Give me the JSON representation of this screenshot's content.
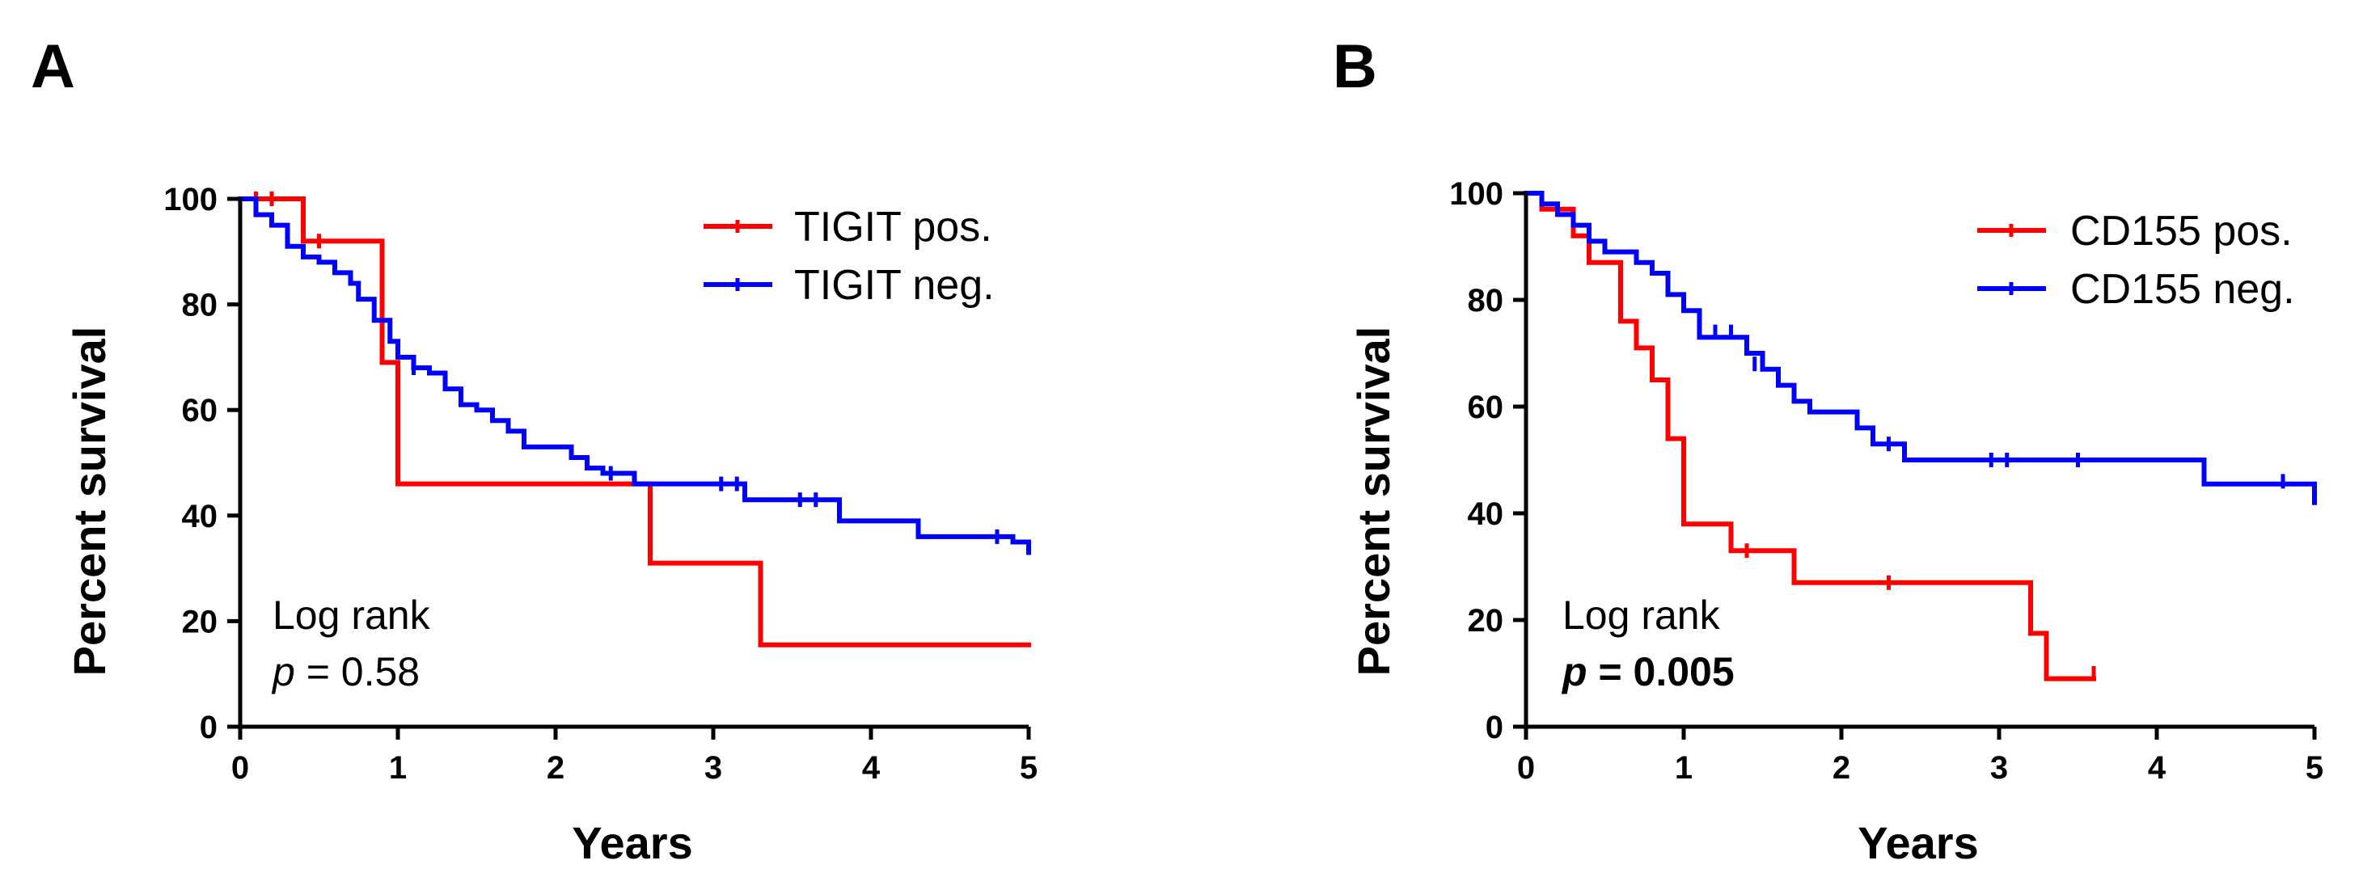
{
  "colors": {
    "pos": "#ff0000",
    "neg": "#0000ff",
    "axis": "#000000"
  },
  "chart_data": [
    {
      "panel": "A",
      "type": "line",
      "style": "kaplan-meier-step",
      "xlabel": "Years",
      "ylabel": "Percent survival",
      "xlim": [
        0,
        5
      ],
      "ylim": [
        0,
        100
      ],
      "xticks": [
        0,
        1,
        2,
        3,
        4,
        5
      ],
      "yticks": [
        0,
        20,
        40,
        60,
        80,
        100
      ],
      "legend_position": "top-right",
      "annotation": {
        "line1": "Log rank",
        "p_symbol": "p",
        "p_text": " = 0.58",
        "bold": false
      },
      "series": [
        {
          "name": "TIGIT pos.",
          "color": "#ff0000",
          "steps": [
            [
              0,
              100
            ],
            [
              0.4,
              92
            ],
            [
              0.9,
              69
            ],
            [
              1.0,
              46
            ],
            [
              2.6,
              31
            ],
            [
              3.3,
              15.5
            ],
            [
              5.0,
              15.5
            ]
          ],
          "censored": [
            [
              0.1,
              100
            ],
            [
              0.2,
              100
            ],
            [
              0.5,
              92
            ]
          ]
        },
        {
          "name": "TIGIT neg.",
          "color": "#0000ff",
          "steps": [
            [
              0,
              100
            ],
            [
              0.1,
              97
            ],
            [
              0.2,
              95
            ],
            [
              0.3,
              91
            ],
            [
              0.4,
              89
            ],
            [
              0.5,
              88
            ],
            [
              0.6,
              86
            ],
            [
              0.7,
              84
            ],
            [
              0.75,
              81
            ],
            [
              0.85,
              77
            ],
            [
              0.95,
              73
            ],
            [
              1.0,
              70
            ],
            [
              1.1,
              68
            ],
            [
              1.2,
              67
            ],
            [
              1.3,
              64
            ],
            [
              1.4,
              61
            ],
            [
              1.5,
              60
            ],
            [
              1.6,
              58
            ],
            [
              1.7,
              56
            ],
            [
              1.8,
              53
            ],
            [
              2.1,
              51
            ],
            [
              2.2,
              49
            ],
            [
              2.3,
              48
            ],
            [
              2.5,
              46
            ],
            [
              3.2,
              43
            ],
            [
              3.8,
              39
            ],
            [
              4.3,
              36
            ],
            [
              4.9,
              35
            ],
            [
              5.0,
              33
            ]
          ],
          "censored": [
            [
              1.1,
              68
            ],
            [
              2.35,
              48
            ],
            [
              3.05,
              46
            ],
            [
              3.15,
              46
            ],
            [
              3.55,
              43
            ],
            [
              3.65,
              43
            ],
            [
              4.8,
              36
            ]
          ]
        }
      ]
    },
    {
      "panel": "B",
      "type": "line",
      "style": "kaplan-meier-step",
      "xlabel": "Years",
      "ylabel": "Percent survival",
      "xlim": [
        0,
        5
      ],
      "ylim": [
        0,
        100
      ],
      "xticks": [
        0,
        1,
        2,
        3,
        4,
        5
      ],
      "yticks": [
        0,
        20,
        40,
        60,
        80,
        100
      ],
      "legend_position": "top-right",
      "annotation": {
        "line1": "Log rank",
        "p_symbol": "p",
        "p_text": " = 0.005",
        "bold": true
      },
      "series": [
        {
          "name": "CD155 pos.",
          "color": "#ff0000",
          "steps": [
            [
              0,
              100
            ],
            [
              0.1,
              97
            ],
            [
              0.3,
              92
            ],
            [
              0.4,
              87
            ],
            [
              0.6,
              76
            ],
            [
              0.7,
              71
            ],
            [
              0.8,
              65
            ],
            [
              0.9,
              54
            ],
            [
              1.0,
              38
            ],
            [
              1.3,
              33
            ],
            [
              1.7,
              27
            ],
            [
              3.2,
              17.5
            ],
            [
              3.3,
              9
            ],
            [
              3.6,
              9
            ]
          ],
          "censored": [
            [
              1.4,
              33
            ],
            [
              2.3,
              27
            ],
            [
              3.6,
              10
            ]
          ]
        },
        {
          "name": "CD155 neg.",
          "color": "#0000ff",
          "steps": [
            [
              0,
              100
            ],
            [
              0.1,
              98
            ],
            [
              0.2,
              96
            ],
            [
              0.3,
              94
            ],
            [
              0.4,
              91
            ],
            [
              0.5,
              89
            ],
            [
              0.7,
              87
            ],
            [
              0.8,
              85
            ],
            [
              0.9,
              81
            ],
            [
              1.0,
              78
            ],
            [
              1.1,
              73
            ],
            [
              1.4,
              70
            ],
            [
              1.5,
              67
            ],
            [
              1.6,
              64
            ],
            [
              1.7,
              61
            ],
            [
              1.8,
              59
            ],
            [
              2.1,
              56
            ],
            [
              2.2,
              53
            ],
            [
              2.4,
              50
            ],
            [
              4.3,
              45.5
            ],
            [
              5.0,
              42
            ]
          ],
          "censored": [
            [
              1.2,
              74
            ],
            [
              1.3,
              74
            ],
            [
              1.45,
              68
            ],
            [
              2.3,
              53
            ],
            [
              2.95,
              50
            ],
            [
              3.05,
              50
            ],
            [
              3.5,
              50
            ],
            [
              4.8,
              46
            ]
          ]
        }
      ]
    }
  ]
}
